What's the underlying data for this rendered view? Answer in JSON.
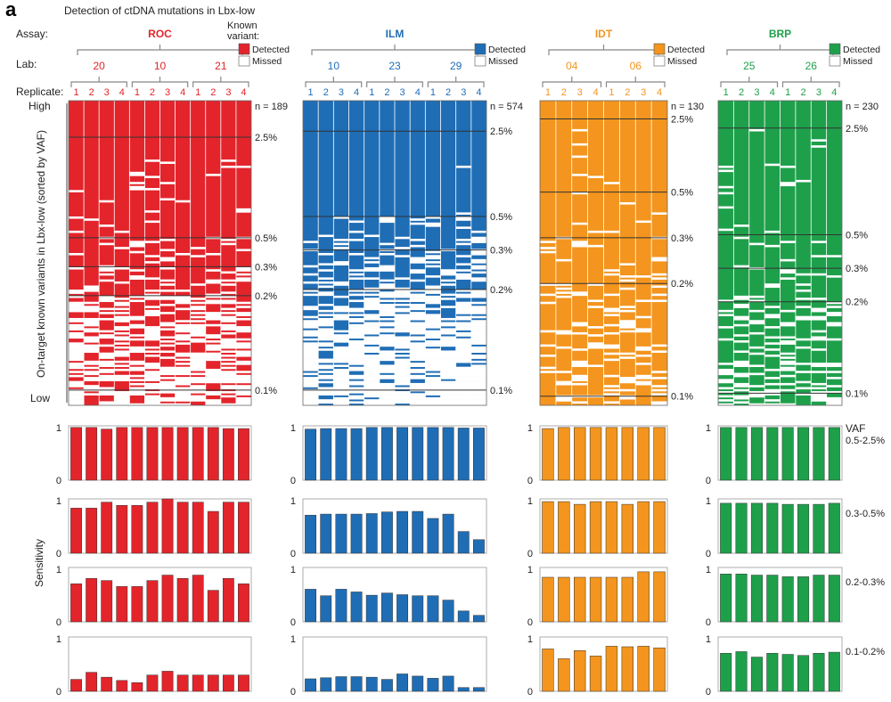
{
  "panel_letter": "a",
  "title": "Detection of ctDNA mutations in Lbx-low",
  "row_labels": {
    "assay": "Assay:",
    "lab": "Lab:",
    "replicate": "Replicate:"
  },
  "legend_header": [
    "Known",
    "variant:"
  ],
  "legend_labels": {
    "detected": "Detected",
    "missed": "Missed"
  },
  "y_axis_heatmap": "On-target known variants in Lbx-low (sorted by VAF)",
  "y_axis_high": "High",
  "y_axis_low": "Low",
  "y_axis_bars": "Sensitivity",
  "vaf_header": "VAF",
  "chart_data": {
    "type": "bar",
    "title": "Detection of ctDNA mutations in Lbx-low",
    "ylabel": "Sensitivity",
    "ylim": [
      0,
      1
    ],
    "yticks": [
      "0",
      "1"
    ],
    "vaf_bins": [
      "0.5-2.5%",
      "0.3-0.5%",
      "0.2-0.3%",
      "0.1-0.2%"
    ],
    "assays": [
      {
        "name": "ROC",
        "color": "#e3242b",
        "n": "n = 189",
        "labs": [
          "20",
          "10",
          "21"
        ],
        "replicates": [
          "1",
          "2",
          "3",
          "4",
          "1",
          "2",
          "3",
          "4",
          "1",
          "2",
          "3",
          "4"
        ],
        "thresholds": [
          {
            "label": "2.5%",
            "pos": 0.12
          },
          {
            "label": "0.5%",
            "pos": 0.45
          },
          {
            "label": "0.3%",
            "pos": 0.545
          },
          {
            "label": "0.2%",
            "pos": 0.64
          },
          {
            "label": "0.1%",
            "pos": 0.95
          }
        ],
        "sensitivity": [
          [
            0.97,
            0.97,
            0.94,
            0.97,
            0.97,
            0.97,
            0.97,
            0.97,
            0.97,
            0.97,
            0.95,
            0.95
          ],
          [
            0.83,
            0.83,
            0.94,
            0.88,
            0.88,
            0.94,
            1.0,
            0.94,
            0.94,
            0.77,
            0.94,
            0.94
          ],
          [
            0.7,
            0.8,
            0.76,
            0.65,
            0.65,
            0.76,
            0.86,
            0.8,
            0.86,
            0.58,
            0.8,
            0.7
          ],
          [
            0.22,
            0.35,
            0.26,
            0.2,
            0.16,
            0.3,
            0.37,
            0.3,
            0.3,
            0.3,
            0.3,
            0.3
          ]
        ]
      },
      {
        "name": "ILM",
        "color": "#1f6db5",
        "n": "n = 574",
        "labs": [
          "10",
          "23",
          "29"
        ],
        "replicates": [
          "1",
          "2",
          "3",
          "4",
          "1",
          "2",
          "3",
          "4",
          "1",
          "2",
          "3",
          "4"
        ],
        "thresholds": [
          {
            "label": "2.5%",
            "pos": 0.1
          },
          {
            "label": "0.5%",
            "pos": 0.38
          },
          {
            "label": "0.3%",
            "pos": 0.49
          },
          {
            "label": "0.2%",
            "pos": 0.62
          },
          {
            "label": "0.1%",
            "pos": 0.95
          }
        ],
        "sensitivity": [
          [
            0.94,
            0.95,
            0.95,
            0.95,
            0.97,
            0.97,
            0.97,
            0.97,
            0.97,
            0.97,
            0.96,
            0.96
          ],
          [
            0.7,
            0.72,
            0.72,
            0.72,
            0.73,
            0.76,
            0.77,
            0.77,
            0.64,
            0.72,
            0.4,
            0.25
          ],
          [
            0.6,
            0.48,
            0.6,
            0.55,
            0.49,
            0.53,
            0.5,
            0.48,
            0.48,
            0.4,
            0.2,
            0.12
          ],
          [
            0.23,
            0.25,
            0.27,
            0.27,
            0.26,
            0.22,
            0.32,
            0.28,
            0.24,
            0.28,
            0.07,
            0.07
          ]
        ]
      },
      {
        "name": "IDT",
        "color": "#f3951e",
        "n": "n = 130",
        "labs": [
          "04",
          "06"
        ],
        "replicates": [
          "1",
          "2",
          "3",
          "4",
          "1",
          "2",
          "3",
          "4"
        ],
        "thresholds": [
          {
            "label": "2.5%",
            "pos": 0.06
          },
          {
            "label": "0.5%",
            "pos": 0.3
          },
          {
            "label": "0.3%",
            "pos": 0.45
          },
          {
            "label": "0.2%",
            "pos": 0.6
          },
          {
            "label": "0.1%",
            "pos": 0.97
          }
        ],
        "sensitivity": [
          [
            0.95,
            0.97,
            0.97,
            0.97,
            0.97,
            0.97,
            0.97,
            0.97
          ],
          [
            0.95,
            0.95,
            0.9,
            0.95,
            0.95,
            0.9,
            0.95,
            0.95
          ],
          [
            0.82,
            0.82,
            0.82,
            0.82,
            0.82,
            0.82,
            0.92,
            0.92
          ],
          [
            0.78,
            0.6,
            0.75,
            0.65,
            0.83,
            0.82,
            0.83,
            0.8
          ]
        ]
      },
      {
        "name": "BRP",
        "color": "#1ea04b",
        "n": "n = 230",
        "labs": [
          "25",
          "26"
        ],
        "replicates": [
          "1",
          "2",
          "3",
          "4",
          "1",
          "2",
          "3",
          "4"
        ],
        "thresholds": [
          {
            "label": "2.5%",
            "pos": 0.09
          },
          {
            "label": "0.5%",
            "pos": 0.44
          },
          {
            "label": "0.3%",
            "pos": 0.55
          },
          {
            "label": "0.2%",
            "pos": 0.66
          },
          {
            "label": "0.1%",
            "pos": 0.96
          }
        ],
        "sensitivity": [
          [
            0.97,
            0.97,
            0.97,
            0.97,
            0.97,
            0.97,
            0.97,
            0.97
          ],
          [
            0.92,
            0.92,
            0.92,
            0.92,
            0.9,
            0.9,
            0.9,
            0.92
          ],
          [
            0.88,
            0.88,
            0.86,
            0.86,
            0.83,
            0.83,
            0.86,
            0.86
          ],
          [
            0.7,
            0.73,
            0.63,
            0.7,
            0.68,
            0.66,
            0.7,
            0.72
          ]
        ]
      }
    ]
  }
}
